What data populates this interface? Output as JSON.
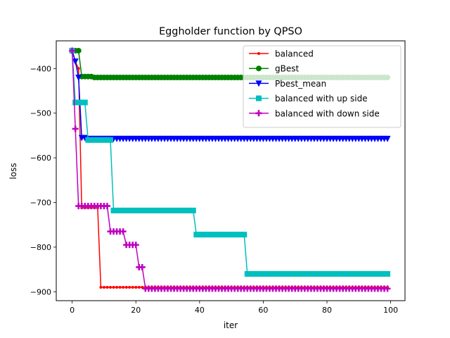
{
  "chart_data": {
    "type": "line",
    "title": "Eggholder function by QPSO",
    "xlabel": "iter",
    "ylabel": "loss",
    "xlim": [
      -5,
      104.5
    ],
    "ylim": [
      -920,
      -338
    ],
    "xticks": [
      0,
      20,
      40,
      60,
      80,
      100
    ],
    "yticks": [
      -400,
      -500,
      -600,
      -700,
      -800,
      -900
    ],
    "xtick_labels": [
      "0",
      "20",
      "40",
      "60",
      "80",
      "100"
    ],
    "ytick_labels": [
      "−400",
      "−500",
      "−600",
      "−700",
      "−800",
      "−900"
    ],
    "grid": false,
    "legend_position": "top-right",
    "n_points": 100,
    "series": [
      {
        "name": "balanced",
        "color": "#ff0000",
        "marker": "point",
        "steps": [
          [
            0,
            -360
          ],
          [
            1,
            -385
          ],
          [
            2,
            -400
          ],
          [
            3,
            -712
          ],
          [
            9,
            -890
          ]
        ]
      },
      {
        "name": "gBest",
        "color": "#008000",
        "marker": "circle",
        "steps": [
          [
            0,
            -360
          ],
          [
            3,
            -418
          ],
          [
            7,
            -420
          ]
        ]
      },
      {
        "name": "Pbest_mean",
        "color": "#0000ff",
        "marker": "triangle_down",
        "steps": [
          [
            0,
            -360
          ],
          [
            1,
            -384
          ],
          [
            2,
            -420
          ],
          [
            3,
            -555
          ],
          [
            5,
            -557
          ]
        ]
      },
      {
        "name": "balanced with up side",
        "color": "#00bfbf",
        "marker": "square",
        "steps": [
          [
            0,
            -360
          ],
          [
            1,
            -476
          ],
          [
            5,
            -560
          ],
          [
            13,
            -718
          ],
          [
            39,
            -772
          ],
          [
            55,
            -860
          ]
        ]
      },
      {
        "name": "balanced with down side",
        "color": "#bf00bf",
        "marker": "plus",
        "steps": [
          [
            0,
            -360
          ],
          [
            1,
            -535
          ],
          [
            2,
            -708
          ],
          [
            12,
            -765
          ],
          [
            17,
            -795
          ],
          [
            21,
            -845
          ],
          [
            23,
            -893
          ]
        ]
      }
    ]
  }
}
